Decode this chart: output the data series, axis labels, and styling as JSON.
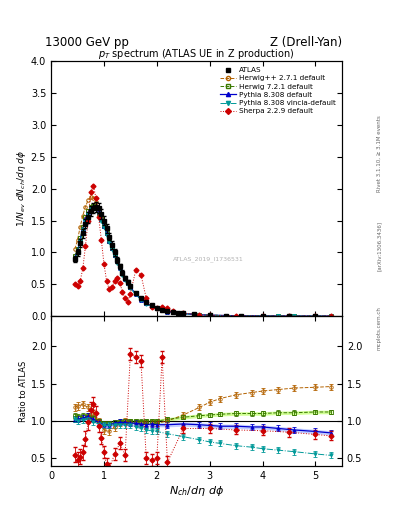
{
  "title_top_left": "13000 GeV pp",
  "title_top_right": "Z (Drell-Yan)",
  "title_main": "p_{T} spectrum (ATLAS UE in Z production)",
  "ylabel_main": "1/N_{ev} dN_{ch}/dη dφ",
  "ylabel_ratio": "Ratio to ATLAS",
  "xlabel": "N_{ch}/dη dφ",
  "right_label1": "Rivet 3.1.10, ≥ 3.1M events",
  "right_label2": "[arXiv:1306.3436]",
  "right_label3": "mcplots.cern.ch",
  "watermark": "ATLAS_2019_I1736531",
  "ylim_main": [
    0,
    4
  ],
  "ylim_ratio": [
    0.4,
    2.4
  ],
  "xlim": [
    0,
    5.5
  ],
  "color_atlas": "#000000",
  "color_herwig271": "#b36200",
  "color_herwig721": "#3a7a00",
  "color_pythia8308": "#0000cc",
  "color_pythia8308v": "#009999",
  "color_sherpa": "#cc0000",
  "band_herwig721_color": "#ccff88",
  "band_pythia8308_color": "#aabbff",
  "atlas_x": [
    0.45,
    0.5,
    0.55,
    0.6,
    0.65,
    0.7,
    0.75,
    0.8,
    0.85,
    0.9,
    0.95,
    1.0,
    1.05,
    1.1,
    1.15,
    1.2,
    1.25,
    1.3,
    1.35,
    1.4,
    1.45,
    1.5,
    1.6,
    1.7,
    1.8,
    1.9,
    2.0,
    2.1,
    2.2,
    2.3,
    2.4,
    2.5,
    2.7,
    3.0,
    3.3,
    3.6,
    4.0,
    4.5,
    5.0
  ],
  "atlas_y": [
    0.9,
    1.0,
    1.15,
    1.3,
    1.45,
    1.55,
    1.65,
    1.7,
    1.72,
    1.7,
    1.6,
    1.5,
    1.38,
    1.25,
    1.12,
    1.0,
    0.88,
    0.78,
    0.68,
    0.6,
    0.53,
    0.47,
    0.36,
    0.28,
    0.22,
    0.17,
    0.13,
    0.1,
    0.08,
    0.065,
    0.052,
    0.042,
    0.028,
    0.015,
    0.009,
    0.005,
    0.003,
    0.0015,
    0.0008
  ],
  "atlas_yerr": [
    0.05,
    0.05,
    0.06,
    0.07,
    0.07,
    0.08,
    0.08,
    0.08,
    0.08,
    0.08,
    0.08,
    0.07,
    0.07,
    0.06,
    0.06,
    0.05,
    0.05,
    0.04,
    0.04,
    0.03,
    0.03,
    0.025,
    0.02,
    0.015,
    0.012,
    0.01,
    0.008,
    0.006,
    0.005,
    0.004,
    0.003,
    0.003,
    0.002,
    0.001,
    0.0007,
    0.0004,
    0.0002,
    0.0001,
    6e-05
  ],
  "hw271_x": [
    0.45,
    0.5,
    0.55,
    0.6,
    0.65,
    0.7,
    0.75,
    0.8,
    0.85,
    0.9,
    0.95,
    1.0,
    1.05,
    1.1,
    1.15,
    1.2,
    1.25,
    1.3,
    1.35,
    1.4,
    1.45,
    1.5,
    1.6,
    1.7,
    1.8,
    1.9,
    2.0,
    2.2,
    2.5,
    2.8,
    3.0,
    3.3,
    3.6,
    4.0,
    4.3,
    4.6,
    5.0,
    5.3
  ],
  "hw271_y": [
    1.05,
    1.2,
    1.4,
    1.58,
    1.72,
    1.82,
    1.87,
    1.86,
    1.8,
    1.7,
    1.58,
    1.45,
    1.32,
    1.2,
    1.08,
    0.97,
    0.87,
    0.77,
    0.68,
    0.6,
    0.52,
    0.46,
    0.35,
    0.27,
    0.21,
    0.16,
    0.12,
    0.07,
    0.04,
    0.022,
    0.015,
    0.009,
    0.005,
    0.003,
    0.0018,
    0.001,
    0.0005,
    0.0003
  ],
  "hw721_x": [
    0.45,
    0.5,
    0.55,
    0.6,
    0.65,
    0.7,
    0.75,
    0.8,
    0.85,
    0.9,
    0.95,
    1.0,
    1.05,
    1.1,
    1.15,
    1.2,
    1.25,
    1.3,
    1.35,
    1.4,
    1.45,
    1.5,
    1.6,
    1.7,
    1.8,
    1.9,
    2.0,
    2.2,
    2.5,
    2.8,
    3.0,
    3.3,
    3.6,
    4.0,
    4.3,
    4.6,
    5.0,
    5.3
  ],
  "hw721_y": [
    0.95,
    1.05,
    1.22,
    1.4,
    1.55,
    1.65,
    1.72,
    1.73,
    1.7,
    1.62,
    1.52,
    1.42,
    1.3,
    1.18,
    1.07,
    0.96,
    0.86,
    0.77,
    0.68,
    0.6,
    0.52,
    0.46,
    0.36,
    0.27,
    0.21,
    0.16,
    0.13,
    0.075,
    0.042,
    0.024,
    0.016,
    0.009,
    0.005,
    0.003,
    0.0018,
    0.001,
    0.0005,
    0.0003
  ],
  "py_x": [
    0.45,
    0.5,
    0.55,
    0.6,
    0.65,
    0.7,
    0.75,
    0.8,
    0.85,
    0.9,
    0.95,
    1.0,
    1.05,
    1.1,
    1.15,
    1.2,
    1.25,
    1.3,
    1.35,
    1.4,
    1.45,
    1.5,
    1.6,
    1.7,
    1.8,
    1.9,
    2.0,
    2.2,
    2.5,
    2.8,
    3.0,
    3.3,
    3.6,
    4.0,
    4.3,
    4.6,
    5.0,
    5.3
  ],
  "py_y": [
    0.92,
    1.02,
    1.2,
    1.37,
    1.52,
    1.62,
    1.7,
    1.72,
    1.7,
    1.63,
    1.52,
    1.42,
    1.3,
    1.18,
    1.07,
    0.96,
    0.86,
    0.76,
    0.67,
    0.59,
    0.52,
    0.45,
    0.35,
    0.26,
    0.2,
    0.155,
    0.12,
    0.072,
    0.04,
    0.022,
    0.015,
    0.009,
    0.005,
    0.003,
    0.0018,
    0.001,
    0.00055,
    0.0003
  ],
  "pyv_x": [
    0.45,
    0.5,
    0.55,
    0.6,
    0.65,
    0.7,
    0.75,
    0.8,
    0.85,
    0.9,
    0.95,
    1.0,
    1.05,
    1.1,
    1.15,
    1.2,
    1.25,
    1.3,
    1.35,
    1.4,
    1.45,
    1.5,
    1.6,
    1.7,
    1.8,
    1.9,
    2.0,
    2.2,
    2.5,
    2.8,
    3.0,
    3.3,
    3.6,
    4.0,
    4.3,
    4.6,
    5.0,
    5.3
  ],
  "pyv_y": [
    0.9,
    1.0,
    1.18,
    1.35,
    1.5,
    1.6,
    1.68,
    1.7,
    1.68,
    1.6,
    1.5,
    1.4,
    1.28,
    1.16,
    1.05,
    0.94,
    0.84,
    0.74,
    0.65,
    0.57,
    0.5,
    0.44,
    0.34,
    0.26,
    0.19,
    0.15,
    0.115,
    0.068,
    0.038,
    0.021,
    0.014,
    0.008,
    0.0045,
    0.0025,
    0.0015,
    0.0009,
    0.0004,
    0.0002
  ],
  "sh_x": [
    0.45,
    0.5,
    0.55,
    0.6,
    0.65,
    0.7,
    0.75,
    0.8,
    0.85,
    0.9,
    0.95,
    1.0,
    1.05,
    1.1,
    1.15,
    1.2,
    1.25,
    1.3,
    1.35,
    1.4,
    1.45,
    1.5,
    1.6,
    1.7,
    1.8,
    1.9,
    2.0,
    2.1,
    2.2,
    2.3,
    2.5,
    2.8,
    3.0,
    3.5,
    4.0,
    4.5,
    5.0,
    5.3
  ],
  "sh_y": [
    0.5,
    0.48,
    0.55,
    0.75,
    1.1,
    1.5,
    1.95,
    2.05,
    1.85,
    1.55,
    1.2,
    0.82,
    0.55,
    0.42,
    0.45,
    0.55,
    0.6,
    0.52,
    0.38,
    0.28,
    0.22,
    0.35,
    0.72,
    0.65,
    0.28,
    0.14,
    0.12,
    0.15,
    0.12,
    0.08,
    0.045,
    0.022,
    0.014,
    0.006,
    0.003,
    0.0015,
    0.0007,
    0.0004
  ],
  "hw271_ratio_x": [
    0.45,
    0.5,
    0.6,
    0.7,
    0.8,
    0.9,
    1.0,
    1.1,
    1.2,
    1.3,
    1.4,
    1.5,
    1.6,
    1.7,
    1.8,
    1.9,
    2.0,
    2.2,
    2.5,
    2.8,
    3.0,
    3.2,
    3.5,
    3.8,
    4.0,
    4.3,
    4.6,
    5.0,
    5.3
  ],
  "hw271_ratio_y": [
    1.18,
    1.2,
    1.22,
    1.18,
    1.1,
    0.99,
    0.88,
    0.86,
    0.92,
    0.97,
    1.0,
    0.98,
    0.97,
    0.97,
    0.97,
    0.97,
    0.97,
    1.0,
    1.08,
    1.18,
    1.25,
    1.3,
    1.35,
    1.38,
    1.4,
    1.42,
    1.44,
    1.45,
    1.46
  ],
  "hw271_ratio_yerr": [
    0.05,
    0.05,
    0.05,
    0.05,
    0.05,
    0.05,
    0.05,
    0.05,
    0.05,
    0.04,
    0.04,
    0.04,
    0.04,
    0.04,
    0.04,
    0.04,
    0.04,
    0.04,
    0.04,
    0.04,
    0.04,
    0.04,
    0.04,
    0.04,
    0.04,
    0.04,
    0.04,
    0.04,
    0.04
  ],
  "hw721_ratio_x": [
    0.45,
    0.5,
    0.6,
    0.7,
    0.8,
    0.9,
    1.0,
    1.1,
    1.2,
    1.3,
    1.4,
    1.5,
    1.6,
    1.7,
    1.8,
    1.9,
    2.0,
    2.2,
    2.5,
    2.8,
    3.0,
    3.2,
    3.5,
    3.8,
    4.0,
    4.3,
    4.6,
    5.0,
    5.3
  ],
  "hw721_ratio_y": [
    1.06,
    1.05,
    1.06,
    1.07,
    1.04,
    1.0,
    0.97,
    0.97,
    0.98,
    0.99,
    1.0,
    1.0,
    1.0,
    0.99,
    1.0,
    1.0,
    1.0,
    1.02,
    1.05,
    1.07,
    1.08,
    1.09,
    1.1,
    1.1,
    1.1,
    1.11,
    1.11,
    1.12,
    1.12
  ],
  "hw721_ratio_yerr": [
    0.04,
    0.04,
    0.04,
    0.04,
    0.04,
    0.03,
    0.03,
    0.03,
    0.03,
    0.03,
    0.03,
    0.03,
    0.03,
    0.03,
    0.03,
    0.03,
    0.03,
    0.03,
    0.03,
    0.03,
    0.03,
    0.03,
    0.03,
    0.03,
    0.03,
    0.03,
    0.03,
    0.03,
    0.03
  ],
  "py_ratio_x": [
    0.45,
    0.5,
    0.6,
    0.7,
    0.8,
    0.9,
    1.0,
    1.1,
    1.2,
    1.3,
    1.4,
    1.5,
    1.6,
    1.7,
    1.8,
    1.9,
    2.0,
    2.2,
    2.5,
    2.8,
    3.0,
    3.2,
    3.5,
    3.8,
    4.0,
    4.3,
    4.6,
    5.0,
    5.3
  ],
  "py_ratio_y": [
    1.03,
    1.02,
    1.04,
    1.06,
    1.02,
    0.98,
    0.95,
    0.95,
    0.97,
    0.98,
    0.98,
    0.97,
    0.97,
    0.96,
    0.95,
    0.96,
    0.95,
    0.95,
    0.96,
    0.95,
    0.94,
    0.93,
    0.93,
    0.92,
    0.92,
    0.9,
    0.88,
    0.86,
    0.84
  ],
  "py_ratio_yerr": [
    0.04,
    0.04,
    0.04,
    0.04,
    0.04,
    0.04,
    0.04,
    0.04,
    0.04,
    0.04,
    0.04,
    0.04,
    0.04,
    0.04,
    0.04,
    0.04,
    0.04,
    0.04,
    0.04,
    0.04,
    0.04,
    0.04,
    0.04,
    0.04,
    0.04,
    0.04,
    0.04,
    0.04,
    0.04
  ],
  "pyv_ratio_x": [
    0.45,
    0.5,
    0.6,
    0.7,
    0.8,
    0.9,
    1.0,
    1.1,
    1.2,
    1.3,
    1.4,
    1.5,
    1.6,
    1.7,
    1.8,
    1.9,
    2.0,
    2.2,
    2.5,
    2.8,
    3.0,
    3.2,
    3.5,
    3.8,
    4.0,
    4.3,
    4.6,
    5.0,
    5.3
  ],
  "pyv_ratio_y": [
    1.02,
    1.0,
    1.01,
    1.02,
    0.99,
    0.96,
    0.94,
    0.94,
    0.95,
    0.95,
    0.95,
    0.94,
    0.92,
    0.9,
    0.88,
    0.87,
    0.86,
    0.83,
    0.79,
    0.75,
    0.72,
    0.7,
    0.67,
    0.65,
    0.63,
    0.61,
    0.59,
    0.56,
    0.54
  ],
  "pyv_ratio_yerr": [
    0.04,
    0.04,
    0.04,
    0.04,
    0.04,
    0.04,
    0.04,
    0.04,
    0.04,
    0.04,
    0.04,
    0.04,
    0.04,
    0.04,
    0.04,
    0.04,
    0.04,
    0.04,
    0.04,
    0.04,
    0.04,
    0.04,
    0.04,
    0.04,
    0.04,
    0.04,
    0.04,
    0.04,
    0.04
  ],
  "sh_ratio_x": [
    0.45,
    0.5,
    0.55,
    0.6,
    0.65,
    0.7,
    0.75,
    0.8,
    0.85,
    0.9,
    0.95,
    1.0,
    1.05,
    1.1,
    1.2,
    1.3,
    1.4,
    1.5,
    1.6,
    1.7,
    1.8,
    1.9,
    2.0,
    2.1,
    2.2,
    2.5,
    3.0,
    3.5,
    4.0,
    4.5,
    5.0,
    5.3
  ],
  "sh_ratio_y": [
    0.55,
    0.48,
    0.52,
    0.58,
    0.76,
    0.98,
    1.15,
    1.22,
    1.1,
    0.93,
    0.77,
    0.58,
    0.42,
    0.36,
    0.56,
    0.7,
    0.55,
    1.9,
    1.85,
    1.8,
    0.5,
    0.48,
    0.5,
    1.85,
    0.45,
    0.9,
    0.9,
    0.88,
    0.87,
    0.85,
    0.82,
    0.8
  ],
  "sh_ratio_yerr": [
    0.1,
    0.1,
    0.1,
    0.1,
    0.1,
    0.1,
    0.1,
    0.1,
    0.1,
    0.08,
    0.08,
    0.08,
    0.08,
    0.08,
    0.08,
    0.08,
    0.08,
    0.08,
    0.08,
    0.08,
    0.08,
    0.08,
    0.08,
    0.08,
    0.08,
    0.06,
    0.06,
    0.06,
    0.06,
    0.06,
    0.06,
    0.06
  ]
}
